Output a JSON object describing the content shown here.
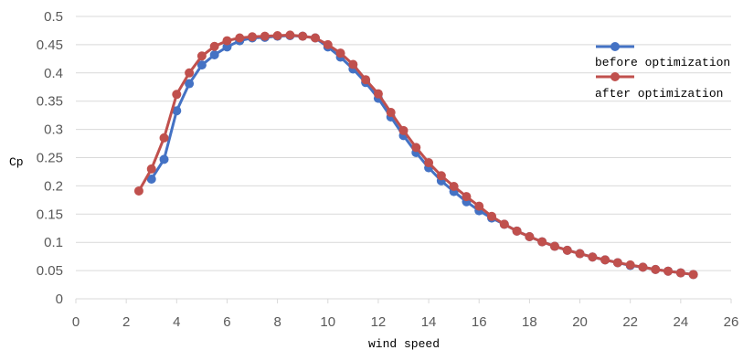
{
  "chart_data": {
    "type": "line",
    "title": "",
    "xlabel": "wind speed",
    "ylabel": "Cp",
    "xlim": [
      0,
      26
    ],
    "ylim": [
      0,
      0.5
    ],
    "xticks": [
      0,
      2,
      4,
      6,
      8,
      10,
      12,
      14,
      16,
      18,
      20,
      22,
      24,
      26
    ],
    "yticks": [
      0,
      0.05,
      0.1,
      0.15,
      0.2,
      0.25,
      0.3,
      0.35,
      0.4,
      0.45,
      0.5
    ],
    "grid": "horizontal",
    "legend_position": "top-right",
    "series": [
      {
        "name": "before optimization",
        "color": "#4472c4",
        "x": [
          3,
          3.5,
          4,
          4.5,
          5,
          5.5,
          6,
          6.5,
          7,
          7.5,
          8,
          8.5,
          9,
          9.5,
          10,
          10.5,
          11,
          11.5,
          12,
          12.5,
          13,
          13.5,
          14,
          14.5,
          15,
          15.5,
          16,
          16.5,
          17,
          17.5,
          18,
          18.5,
          19,
          19.5,
          20,
          20.5,
          21,
          21.5,
          22,
          22.5,
          23,
          23.5,
          24,
          24.5
        ],
        "y": [
          0.212,
          0.247,
          0.333,
          0.381,
          0.414,
          0.432,
          0.446,
          0.457,
          0.462,
          0.463,
          0.465,
          0.466,
          0.465,
          0.462,
          0.446,
          0.428,
          0.407,
          0.383,
          0.355,
          0.322,
          0.289,
          0.259,
          0.232,
          0.209,
          0.19,
          0.172,
          0.156,
          0.143,
          0.132,
          0.12,
          0.11,
          0.101,
          0.093,
          0.086,
          0.08,
          0.074,
          0.069,
          0.064,
          0.059,
          0.056,
          0.052,
          0.049,
          0.046,
          0.043
        ]
      },
      {
        "name": "after optimization",
        "color": "#c0504d",
        "x": [
          2.5,
          3,
          3.5,
          4,
          4.5,
          5,
          5.5,
          6,
          6.5,
          7,
          7.5,
          8,
          8.5,
          9,
          9.5,
          10,
          10.5,
          11,
          11.5,
          12,
          12.5,
          13,
          13.5,
          14,
          14.5,
          15,
          15.5,
          16,
          16.5,
          17,
          17.5,
          18,
          18.5,
          19,
          19.5,
          20,
          20.5,
          21,
          21.5,
          22,
          22.5,
          23,
          23.5,
          24,
          24.5
        ],
        "y": [
          0.191,
          0.23,
          0.285,
          0.362,
          0.4,
          0.43,
          0.447,
          0.457,
          0.462,
          0.464,
          0.465,
          0.466,
          0.467,
          0.465,
          0.462,
          0.45,
          0.435,
          0.415,
          0.388,
          0.363,
          0.33,
          0.298,
          0.268,
          0.241,
          0.218,
          0.199,
          0.181,
          0.164,
          0.146,
          0.132,
          0.12,
          0.11,
          0.101,
          0.093,
          0.086,
          0.08,
          0.074,
          0.069,
          0.064,
          0.06,
          0.056,
          0.052,
          0.049,
          0.046,
          0.043
        ]
      }
    ]
  }
}
